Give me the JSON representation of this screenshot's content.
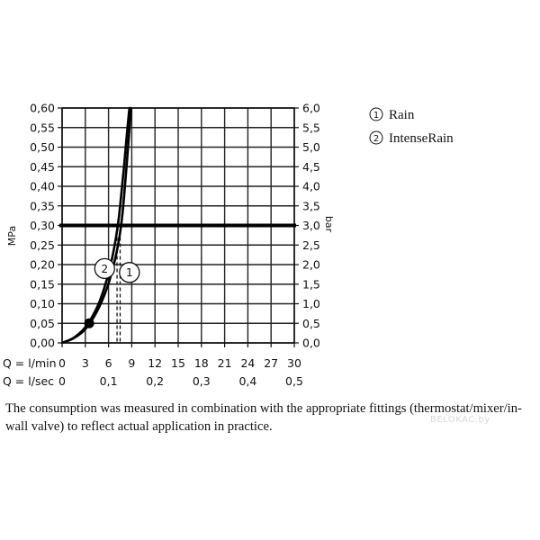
{
  "chart_data": {
    "type": "line",
    "title": "",
    "y_left": {
      "label": "MPa",
      "range": [
        0,
        0.6
      ],
      "ticks": [
        "0,00",
        "0,05",
        "0,10",
        "0,15",
        "0,20",
        "0,25",
        "0,30",
        "0,35",
        "0,40",
        "0,45",
        "0,50",
        "0,55",
        "0,60"
      ]
    },
    "y_right": {
      "label": "bar",
      "range": [
        0,
        6
      ],
      "ticks": [
        "0,0",
        "0,5",
        "1,0",
        "1,5",
        "2,0",
        "2,5",
        "3,0",
        "3,5",
        "4,0",
        "4,5",
        "5,0",
        "5,5",
        "6,0"
      ]
    },
    "x_lmin": {
      "label": "Q = l/min",
      "range": [
        0,
        30
      ],
      "ticks": [
        "0",
        "3",
        "6",
        "9",
        "12",
        "15",
        "18",
        "21",
        "24",
        "27",
        "30"
      ]
    },
    "x_lsec": {
      "label": "Q = l/sec",
      "ticks": [
        {
          "value": 0,
          "text": "0"
        },
        {
          "value": 0.1,
          "text": "0,1"
        },
        {
          "value": 0.2,
          "text": "0,2"
        },
        {
          "value": 0.3,
          "text": "0,3"
        },
        {
          "value": 0.4,
          "text": "0,4"
        },
        {
          "value": 0.5,
          "text": "0,5"
        }
      ]
    },
    "grid": true,
    "highlight_line": 0.3,
    "min_pressure_point": {
      "x": 3.5,
      "y": 0.05
    },
    "series": [
      {
        "name": "Rain",
        "marker": "1",
        "points": [
          [
            0,
            0
          ],
          [
            1.5,
            0.012
          ],
          [
            3,
            0.035
          ],
          [
            4.5,
            0.08
          ],
          [
            5.8,
            0.14
          ],
          [
            6.8,
            0.21
          ],
          [
            7.4,
            0.27
          ],
          [
            7.8,
            0.33
          ],
          [
            8.2,
            0.42
          ],
          [
            8.6,
            0.52
          ],
          [
            8.9,
            0.6
          ]
        ],
        "ref_flow": 7.5
      },
      {
        "name": "IntenseRain",
        "marker": "2",
        "points": [
          [
            0,
            0
          ],
          [
            1.5,
            0.013
          ],
          [
            3,
            0.04
          ],
          [
            4.5,
            0.09
          ],
          [
            5.6,
            0.15
          ],
          [
            6.5,
            0.22
          ],
          [
            7.2,
            0.3
          ],
          [
            7.6,
            0.37
          ],
          [
            8,
            0.45
          ],
          [
            8.4,
            0.54
          ],
          [
            8.7,
            0.6
          ]
        ],
        "ref_flow": 7.1
      }
    ],
    "legend": [
      {
        "marker": "1",
        "text": "Rain"
      },
      {
        "marker": "2",
        "text": "IntenseRain"
      }
    ],
    "legend_position": "top-right"
  },
  "note": "The consumption was measured in combination with the appropriate fittings (thermostat/mixer/in-wall valve) to reflect actual application in practice.",
  "watermark": "BELOKAC.by"
}
